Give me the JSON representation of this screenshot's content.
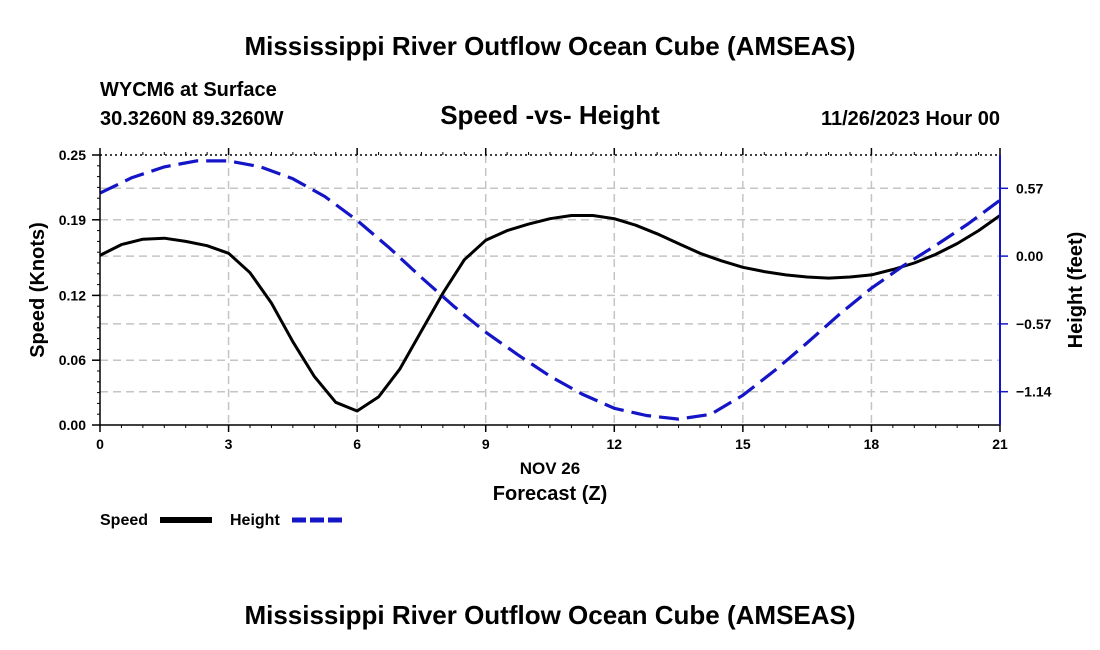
{
  "page_title": "Mississippi River Outflow Ocean Cube (AMSEAS)",
  "footer_title": "Mississippi River Outflow Ocean Cube (AMSEAS)",
  "station": {
    "name": "WYCM6 at Surface",
    "coords": "30.3260N  89.3260W"
  },
  "datetime": "11/26/2023 Hour 00",
  "chart_data": {
    "type": "line",
    "title": "Speed -vs- Height",
    "xlabel_date": "NOV 26",
    "xlabel": "Forecast (Z)",
    "ylabel": "Speed (Knots)",
    "ylabel_right": "Height (feet)",
    "xlim": [
      0,
      21
    ],
    "ylim": [
      0,
      0.25
    ],
    "ylim_right": [
      -1.42,
      0.85
    ],
    "x_ticks": [
      0,
      3,
      6,
      9,
      12,
      15,
      18,
      21
    ],
    "x_tick_labels": [
      "0",
      "3",
      "6",
      "9",
      "12",
      "15",
      "18",
      "21"
    ],
    "y_ticks": [
      0.0,
      0.06,
      0.12,
      0.19,
      0.25
    ],
    "y_tick_labels": [
      "0.00",
      "0.06",
      "0.12",
      "0.19",
      "0.25"
    ],
    "y_right_ticks": [
      0.57,
      0.0,
      -0.57,
      -1.14
    ],
    "y_right_tick_labels": [
      "0.57",
      "0.00",
      "−0.57",
      "−1.14"
    ],
    "grid": true,
    "series": [
      {
        "name": "Speed",
        "axis": "left",
        "color": "#000000",
        "dash": "solid",
        "x": [
          0,
          0.5,
          1,
          1.5,
          2,
          2.5,
          3,
          3.5,
          4,
          4.5,
          5,
          5.5,
          6,
          6.5,
          7,
          7.5,
          8,
          8.5,
          9,
          9.5,
          10,
          10.5,
          11,
          11.5,
          12,
          12.5,
          13,
          13.5,
          14,
          14.5,
          15,
          15.5,
          16,
          16.5,
          17,
          17.5,
          18,
          18.5,
          19,
          19.5,
          20,
          20.5,
          21
        ],
        "values": [
          0.157,
          0.167,
          0.172,
          0.173,
          0.17,
          0.166,
          0.159,
          0.141,
          0.113,
          0.077,
          0.045,
          0.021,
          0.013,
          0.026,
          0.052,
          0.087,
          0.122,
          0.153,
          0.171,
          0.18,
          0.186,
          0.191,
          0.194,
          0.194,
          0.191,
          0.185,
          0.177,
          0.168,
          0.159,
          0.152,
          0.146,
          0.142,
          0.139,
          0.137,
          0.136,
          0.137,
          0.139,
          0.144,
          0.15,
          0.158,
          0.168,
          0.18,
          0.194
        ]
      },
      {
        "name": "Height",
        "axis": "right",
        "color": "#1515c8",
        "dash": "dashed",
        "x": [
          0,
          0.75,
          1.5,
          2.25,
          3,
          3.75,
          4.5,
          5.25,
          6,
          6.75,
          7.5,
          8.25,
          9,
          9.75,
          10.5,
          11.25,
          12,
          12.75,
          13.5,
          14.25,
          15,
          15.75,
          16.5,
          17.25,
          18,
          18.75,
          19.5,
          20.25,
          21
        ],
        "values": [
          0.53,
          0.66,
          0.75,
          0.8,
          0.8,
          0.75,
          0.65,
          0.5,
          0.3,
          0.07,
          -0.18,
          -0.42,
          -0.64,
          -0.83,
          -1.01,
          -1.16,
          -1.28,
          -1.34,
          -1.37,
          -1.33,
          -1.17,
          -0.96,
          -0.73,
          -0.49,
          -0.27,
          -0.08,
          0.09,
          0.27,
          0.47
        ]
      }
    ],
    "legend": {
      "position": "bottom-left",
      "entries": [
        "Speed",
        "Height"
      ]
    }
  }
}
